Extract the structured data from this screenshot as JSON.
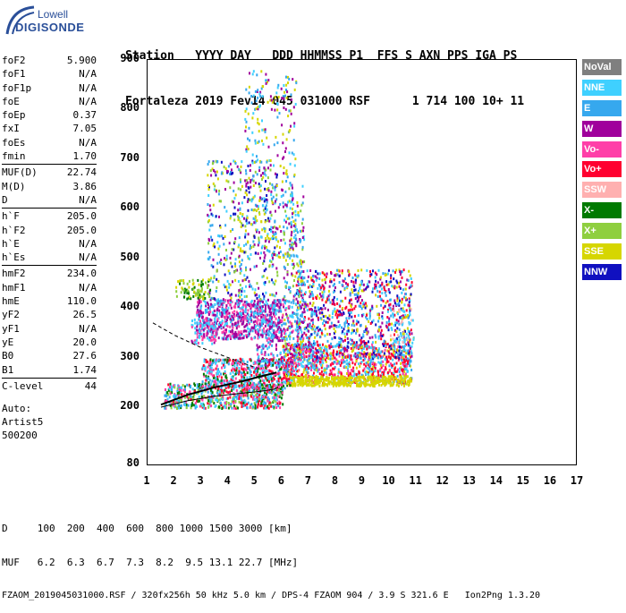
{
  "logo": {
    "line1": "Lowell",
    "line2": "DIGISONDE"
  },
  "header": {
    "line1": "Station   YYYY DAY   DDD HHMMSS P1  FFS S AXN PPS IGA PS",
    "line2": "Fortaleza 2019 Fev14 045 031000 RSF      1 714 100 10+ 11"
  },
  "params": [
    {
      "name": "foF2",
      "value": "5.900"
    },
    {
      "name": "foF1",
      "value": "N/A"
    },
    {
      "name": "foF1p",
      "value": "N/A"
    },
    {
      "name": "foE",
      "value": "N/A"
    },
    {
      "name": "foEp",
      "value": "0.37"
    },
    {
      "name": "fxI",
      "value": "7.05"
    },
    {
      "name": "foEs",
      "value": "N/A"
    },
    {
      "name": "fmin",
      "value": "1.70"
    },
    {
      "name": "MUF(D)",
      "value": "22.74"
    },
    {
      "name": "M(D)",
      "value": "3.86"
    },
    {
      "name": "D",
      "value": "N/A"
    },
    {
      "name": "h`F",
      "value": "205.0"
    },
    {
      "name": "h`F2",
      "value": "205.0"
    },
    {
      "name": "h`E",
      "value": "N/A"
    },
    {
      "name": "h`Es",
      "value": "N/A"
    },
    {
      "name": "hmF2",
      "value": "234.0"
    },
    {
      "name": "hmF1",
      "value": "N/A"
    },
    {
      "name": "hmE",
      "value": "110.0"
    },
    {
      "name": "yF2",
      "value": "26.5"
    },
    {
      "name": "yF1",
      "value": "N/A"
    },
    {
      "name": "yE",
      "value": "20.0"
    },
    {
      "name": "B0",
      "value": "27.6"
    },
    {
      "name": "B1",
      "value": "1.74"
    },
    {
      "name": "C-level",
      "value": "44"
    }
  ],
  "auto": {
    "line1": "Auto:",
    "line2": "Artist5",
    "line3": "500200"
  },
  "legend": [
    {
      "label": "NoVal",
      "color": "#7f7f7f"
    },
    {
      "label": "NNE",
      "color": "#3fd0ff"
    },
    {
      "label": "E",
      "color": "#36a8ee"
    },
    {
      "label": "W",
      "color": "#a0009c"
    },
    {
      "label": "Vo-",
      "color": "#ff3fa8"
    },
    {
      "label": "Vo+",
      "color": "#ff0030"
    },
    {
      "label": "SSW",
      "color": "#ffb0b0"
    },
    {
      "label": "X-",
      "color": "#007a00"
    },
    {
      "label": "X+",
      "color": "#8fcf3f"
    },
    {
      "label": "SSE",
      "color": "#d6d600"
    },
    {
      "label": "NNW",
      "color": "#1010c0"
    }
  ],
  "chart_data": {
    "type": "scatter",
    "xlim": [
      1,
      17
    ],
    "ylim": [
      80,
      900
    ],
    "xticks": [
      "1",
      "2",
      "3",
      "4",
      "5",
      "6",
      "7",
      "8",
      "9",
      "10",
      "11",
      "12",
      "13",
      "14",
      "15",
      "16",
      "17"
    ],
    "yticks": [
      "900",
      "800",
      "700",
      "600",
      "500",
      "400",
      "300",
      "200",
      "80"
    ],
    "profile_curve": [
      [
        1.5,
        200
      ],
      [
        2.5,
        213
      ],
      [
        3.5,
        222
      ],
      [
        4.5,
        228
      ],
      [
        5.2,
        232
      ],
      [
        5.7,
        236
      ],
      [
        5.85,
        240
      ]
    ],
    "trace_curve": [
      [
        1.5,
        205
      ],
      [
        2.5,
        225
      ],
      [
        3.5,
        240
      ],
      [
        4.5,
        252
      ],
      [
        5.2,
        262
      ],
      [
        5.8,
        270
      ]
    ]
  },
  "footer": {
    "line1": "D     100  200  400  600  800 1000 1500 3000 [km]",
    "line2": "MUF   6.2  6.3  6.7  7.3  8.2  9.5 13.1 22.7 [MHz]",
    "line3": "FZAOM_2019045031000.RSF / 320fx256h 50 kHz 5.0 km / DPS-4 FZAOM 904 / 3.9 S 321.6 E   Ion2Png 1.3.20"
  }
}
